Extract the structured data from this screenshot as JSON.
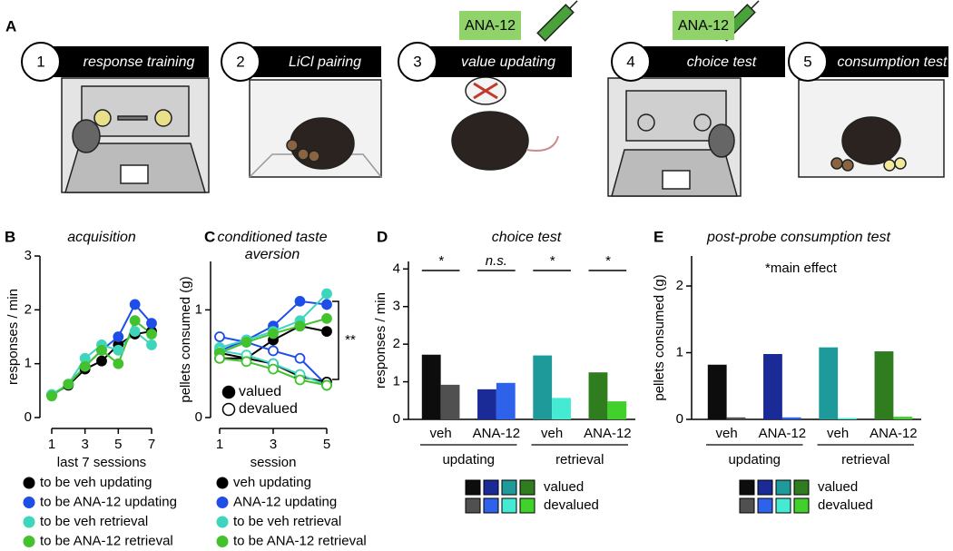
{
  "panel_a": {
    "letter": "A",
    "steps": [
      {
        "number": "1",
        "label": "response training"
      },
      {
        "number": "2",
        "label": "LiCl pairing"
      },
      {
        "number": "3",
        "label": "value updating",
        "drug": "ANA-12"
      },
      {
        "number": "4",
        "label": "choice test",
        "drug": "ANA-12"
      },
      {
        "number": "5",
        "label": "consumption test"
      }
    ]
  },
  "chart_data": [
    {
      "panel": "B",
      "type": "line",
      "title": "acquisition",
      "x_label": "last 7 sessions",
      "y_label": "responses / min",
      "x": [
        1,
        2,
        3,
        4,
        5,
        6,
        7
      ],
      "xlim": [
        1,
        7
      ],
      "xticks": [
        1,
        3,
        5,
        7
      ],
      "ylim": [
        0,
        3
      ],
      "yticks": [
        0,
        1,
        2,
        3
      ],
      "series": [
        {
          "name": "to be veh updating",
          "color": "#000000",
          "values": [
            0.42,
            0.6,
            0.9,
            1.05,
            1.35,
            1.55,
            1.6
          ]
        },
        {
          "name": "to be ANA-12 updating",
          "color": "#1f4de8",
          "values": [
            0.42,
            0.62,
            0.95,
            1.25,
            1.5,
            2.1,
            1.75
          ]
        },
        {
          "name": "to be veh retrieval",
          "color": "#3dd6bd",
          "values": [
            0.43,
            0.62,
            1.1,
            1.35,
            1.25,
            1.6,
            1.35
          ]
        },
        {
          "name": "to be ANA-12 retrieval",
          "color": "#44c22e",
          "values": [
            0.4,
            0.62,
            0.95,
            1.25,
            1.0,
            1.8,
            1.55
          ]
        }
      ]
    },
    {
      "panel": "C",
      "type": "line",
      "title": [
        "conditioned taste",
        "aversion"
      ],
      "x_label": "session",
      "y_label": "pellets consumed (g)",
      "x": [
        1,
        2,
        3,
        4,
        5
      ],
      "xlim": [
        1,
        5
      ],
      "xticks": [
        1,
        3,
        5
      ],
      "ylim": [
        0,
        1.45
      ],
      "yticks": [
        0,
        1
      ],
      "markers": [
        "valued",
        "devalued"
      ],
      "annotation": "**",
      "series": [
        {
          "name": "veh updating",
          "color": "#000000",
          "valued": [
            0.55,
            0.55,
            0.72,
            0.85,
            0.8
          ],
          "devalued": [
            0.6,
            0.55,
            0.5,
            0.38,
            0.33
          ]
        },
        {
          "name": "ANA-12 updating",
          "color": "#1f4de8",
          "valued": [
            0.62,
            0.72,
            0.85,
            1.08,
            1.05
          ],
          "devalued": [
            0.75,
            0.7,
            0.62,
            0.55,
            0.3
          ]
        },
        {
          "name": "to be veh retrieval",
          "color": "#3dd6bd",
          "valued": [
            0.65,
            0.72,
            0.8,
            0.9,
            1.15
          ],
          "devalued": [
            0.62,
            0.58,
            0.5,
            0.4,
            0.3
          ]
        },
        {
          "name": "to be ANA-12 retrieval",
          "color": "#44c22e",
          "valued": [
            0.6,
            0.7,
            0.78,
            0.85,
            0.92
          ],
          "devalued": [
            0.55,
            0.52,
            0.45,
            0.35,
            0.3
          ]
        }
      ]
    },
    {
      "panel": "D",
      "type": "bar",
      "title": "choice test",
      "y_label": "responses / min",
      "categories": [
        "veh",
        "ANA-12",
        "veh",
        "ANA-12"
      ],
      "groups": [
        "updating",
        "retrieval"
      ],
      "annotations": [
        "*",
        "n.s.",
        "*",
        "*"
      ],
      "ylim": [
        0,
        4.2
      ],
      "yticks": [
        0,
        1,
        2,
        3,
        4
      ],
      "series": [
        {
          "name": "valued",
          "colors": [
            "#0d0d0d",
            "#1a2a96",
            "#1f9a9a",
            "#2f7d1f"
          ],
          "values": [
            1.72,
            0.8,
            1.7,
            1.25
          ]
        },
        {
          "name": "devalued",
          "colors": [
            "#505050",
            "#2f62ea",
            "#45ead2",
            "#42d02c"
          ],
          "values": [
            0.92,
            0.97,
            0.57,
            0.48
          ]
        }
      ]
    },
    {
      "panel": "E",
      "type": "bar",
      "title": "post-probe consumption test",
      "y_label": "pellets consumed (g)",
      "categories": [
        "veh",
        "ANA-12",
        "veh",
        "ANA-12"
      ],
      "groups": [
        "updating",
        "retrieval"
      ],
      "annotation": "*main effect",
      "ylim": [
        0,
        2.45
      ],
      "yticks": [
        0,
        1,
        2
      ],
      "series": [
        {
          "name": "valued",
          "colors": [
            "#0d0d0d",
            "#1a2a96",
            "#1f9a9a",
            "#2f7d1f"
          ],
          "values": [
            0.82,
            0.98,
            1.08,
            1.02
          ]
        },
        {
          "name": "devalued",
          "colors": [
            "#505050",
            "#2f62ea",
            "#45ead2",
            "#42d02c"
          ],
          "values": [
            0.03,
            0.03,
            0.02,
            0.04
          ]
        }
      ]
    }
  ]
}
